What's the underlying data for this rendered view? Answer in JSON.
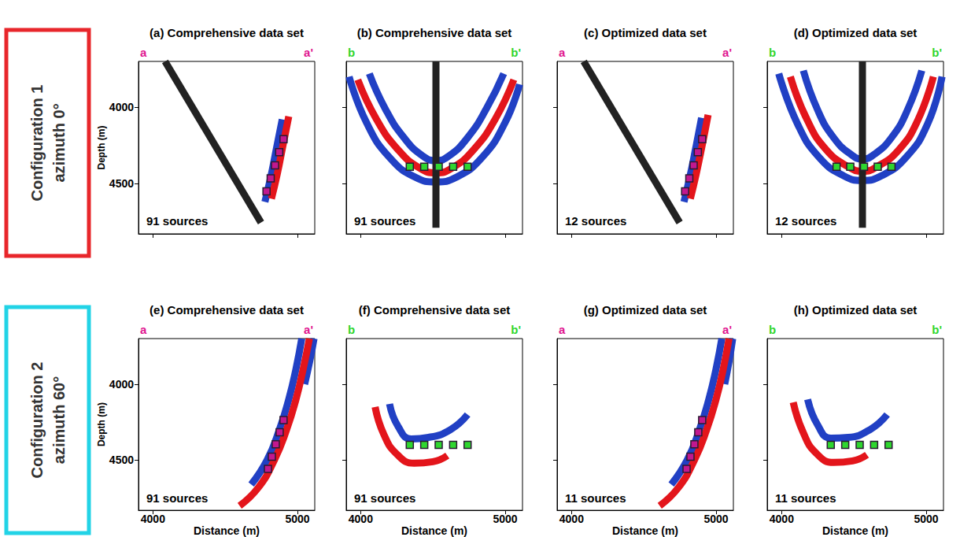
{
  "row_labels": [
    {
      "texts": [
        "Configuration 1",
        "azimuth 0°"
      ],
      "color": "#e8262b"
    },
    {
      "texts": [
        "Configuration 2",
        "azimuth 60°"
      ],
      "color": "#22d3e6"
    }
  ],
  "chart_data": [
    {
      "type": "line",
      "title": "(a) Comprehensive data set",
      "corner_labels": {
        "texts": [
          "a",
          "a'"
        ],
        "color": "#e0158f"
      },
      "annotation": "91 sources",
      "ylabel": "Depth (m)",
      "xlim": [
        3900,
        5120
      ],
      "ylim": [
        3700,
        4830
      ],
      "xticks": [
        4000,
        5000
      ],
      "yticks": [
        4000,
        4500
      ],
      "tick_labels": "y",
      "series": [
        {
          "type": "line",
          "color": "#2140c4",
          "x": [
            4895,
            4855,
            4815,
            4775
          ],
          "values": [
            4080,
            4270,
            4460,
            4620
          ]
        },
        {
          "type": "line",
          "color": "#e3151b",
          "x": [
            4940,
            4900,
            4860,
            4820
          ],
          "values": [
            4060,
            4250,
            4440,
            4600
          ]
        },
        {
          "type": "line",
          "color": "#222222",
          "x": [
            4084,
            4748
          ],
          "values": [
            3700,
            4756
          ]
        },
        {
          "type": "scatter",
          "marker": "square",
          "color": "#c2188f",
          "x": [
            4904,
            4874,
            4845,
            4815,
            4786
          ],
          "values": [
            4210,
            4295,
            4381,
            4466,
            4552
          ]
        }
      ]
    },
    {
      "type": "line",
      "title": "(b) Comprehensive data set",
      "corner_labels": {
        "texts": [
          "b",
          "b'"
        ],
        "color": "#2fd62f"
      },
      "annotation": "91 sources",
      "xlim": [
        3900,
        5120
      ],
      "ylim": [
        3700,
        4830
      ],
      "xticks": [
        4000,
        5000
      ],
      "yticks": [
        4000,
        4500
      ],
      "tick_labels": false,
      "series": [
        {
          "type": "line",
          "color": "#2140c4",
          "x": [
            3920,
            4040,
            4200,
            4380,
            4521,
            4660,
            4840,
            5000,
            5100
          ],
          "values": [
            3800,
            4100,
            4330,
            4460,
            4490,
            4460,
            4330,
            4100,
            3850
          ]
        },
        {
          "type": "line",
          "color": "#e3151b",
          "x": [
            3980,
            4110,
            4260,
            4410,
            4521,
            4630,
            4780,
            4930,
            5060
          ],
          "values": [
            3820,
            4080,
            4280,
            4400,
            4430,
            4400,
            4280,
            4080,
            3820
          ]
        },
        {
          "type": "line",
          "color": "#2140c4",
          "x": [
            4060,
            4170,
            4300,
            4430,
            4521,
            4610,
            4740,
            4870,
            4990
          ],
          "values": [
            3780,
            4010,
            4200,
            4320,
            4350,
            4320,
            4200,
            4010,
            3780
          ]
        },
        {
          "type": "line",
          "color": "#222222",
          "x": [
            4521,
            4521
          ],
          "values": [
            3700,
            4790
          ]
        },
        {
          "type": "scatter",
          "marker": "square",
          "color": "#2fd62f",
          "x": [
            4340,
            4440,
            4540,
            4640,
            4740
          ],
          "values": [
            4390,
            4390,
            4390,
            4390,
            4390
          ]
        }
      ]
    },
    {
      "type": "line",
      "title": "(c) Optimized data set",
      "corner_labels": {
        "texts": [
          "a",
          "a'"
        ],
        "color": "#e0158f"
      },
      "annotation": "12 sources",
      "xlim": [
        3900,
        5120
      ],
      "ylim": [
        3700,
        4830
      ],
      "xticks": [
        4000,
        5000
      ],
      "yticks": [
        4000,
        4500
      ],
      "tick_labels": false,
      "series": [
        {
          "type": "line",
          "color": "#2140c4",
          "x": [
            4900,
            4860,
            4818,
            4778
          ],
          "values": [
            4070,
            4265,
            4460,
            4620
          ]
        },
        {
          "type": "line",
          "color": "#e3151b",
          "x": [
            4945,
            4905,
            4862,
            4822
          ],
          "values": [
            4050,
            4245,
            4440,
            4600
          ]
        },
        {
          "type": "line",
          "color": "#222222",
          "x": [
            4084,
            4748
          ],
          "values": [
            3700,
            4756
          ]
        },
        {
          "type": "scatter",
          "marker": "square",
          "color": "#c2188f",
          "x": [
            4904,
            4874,
            4845,
            4815,
            4786
          ],
          "values": [
            4210,
            4295,
            4381,
            4466,
            4552
          ]
        }
      ]
    },
    {
      "type": "line",
      "title": "(d) Optimized data set",
      "corner_labels": {
        "texts": [
          "b",
          "b'"
        ],
        "color": "#2fd62f"
      },
      "annotation": "12 sources",
      "xlim": [
        3900,
        5120
      ],
      "ylim": [
        3700,
        4830
      ],
      "xticks": [
        4000,
        5000
      ],
      "yticks": [
        4000,
        4500
      ],
      "tick_labels": false,
      "series": [
        {
          "type": "line",
          "color": "#2140c4",
          "x": [
            3980,
            4110,
            4260,
            4430,
            4559,
            4690,
            4860,
            5010,
            5110
          ],
          "values": [
            3780,
            4110,
            4330,
            4450,
            4480,
            4450,
            4330,
            4110,
            3800
          ]
        },
        {
          "type": "line",
          "color": "#e3151b",
          "x": [
            4060,
            4180,
            4310,
            4460,
            4559,
            4660,
            4810,
            4940,
            5050
          ],
          "values": [
            3800,
            4090,
            4280,
            4390,
            4420,
            4390,
            4280,
            4090,
            3800
          ]
        },
        {
          "type": "line",
          "color": "#2140c4",
          "x": [
            4150,
            4250,
            4360,
            4480,
            4559,
            4640,
            4760,
            4870,
            4970
          ],
          "values": [
            3760,
            4020,
            4200,
            4310,
            4340,
            4310,
            4200,
            4020,
            3760
          ]
        },
        {
          "type": "line",
          "color": "#222222",
          "x": [
            4559,
            4559
          ],
          "values": [
            3700,
            4790
          ]
        },
        {
          "type": "scatter",
          "marker": "square",
          "color": "#2fd62f",
          "x": [
            4380,
            4475,
            4570,
            4665,
            4760
          ],
          "values": [
            4390,
            4390,
            4390,
            4390,
            4390
          ]
        }
      ]
    },
    {
      "type": "line",
      "title": "(e) Comprehensive data set",
      "corner_labels": {
        "texts": [
          "a",
          "a'"
        ],
        "color": "#e0158f"
      },
      "annotation": "91 sources",
      "xlabel": "Distance (m)",
      "ylabel": "Depth (m)",
      "xlim": [
        3900,
        5120
      ],
      "ylim": [
        3700,
        4830
      ],
      "xticks": [
        4000,
        5000
      ],
      "yticks": [
        4000,
        4500
      ],
      "tick_labels": true,
      "series": [
        {
          "type": "line",
          "color": "#2140c4",
          "x": [
            5030,
            4990,
            4940,
            4875,
            4790,
            4680
          ],
          "values": [
            3700,
            3900,
            4100,
            4300,
            4500,
            4660
          ]
        },
        {
          "type": "line",
          "color": "#2140c4",
          "x": [
            5115,
            5085,
            5050
          ],
          "values": [
            3700,
            3850,
            4000
          ]
        },
        {
          "type": "line",
          "color": "#e3151b",
          "x": [
            5083,
            5040,
            4990,
            4925,
            4840,
            4730,
            4600
          ],
          "values": [
            3700,
            3900,
            4100,
            4300,
            4500,
            4680,
            4800
          ]
        },
        {
          "type": "scatter",
          "marker": "square",
          "color": "#c2188f",
          "x": [
            4904,
            4877,
            4850,
            4823,
            4796
          ],
          "values": [
            4236,
            4316,
            4396,
            4477,
            4557
          ]
        }
      ]
    },
    {
      "type": "line",
      "title": "(f) Comprehensive data set",
      "corner_labels": {
        "texts": [
          "b",
          "b'"
        ],
        "color": "#2fd62f"
      },
      "annotation": "91 sources",
      "xlabel": "Distance (m)",
      "xlim": [
        3900,
        5120
      ],
      "ylim": [
        3700,
        4830
      ],
      "xticks": [
        4000,
        5000
      ],
      "yticks": [
        4000,
        4500
      ],
      "tick_labels": "x",
      "series": [
        {
          "type": "line",
          "color": "#2140c4",
          "x": [
            4200,
            4260,
            4350,
            4470,
            4620,
            4740
          ],
          "values": [
            4130,
            4280,
            4360,
            4350,
            4300,
            4200
          ]
        },
        {
          "type": "line",
          "color": "#e3151b",
          "x": [
            4100,
            4160,
            4250,
            4370,
            4500,
            4600
          ],
          "values": [
            4150,
            4330,
            4460,
            4520,
            4510,
            4470
          ]
        },
        {
          "type": "scatter",
          "marker": "square",
          "color": "#2fd62f",
          "x": [
            4340,
            4440,
            4540,
            4640,
            4740
          ],
          "values": [
            4400,
            4400,
            4400,
            4400,
            4400
          ]
        }
      ]
    },
    {
      "type": "line",
      "title": "(g) Optimized data set",
      "corner_labels": {
        "texts": [
          "a",
          "a'"
        ],
        "color": "#e0158f"
      },
      "annotation": "11 sources",
      "xlabel": "Distance (m)",
      "xlim": [
        3900,
        5120
      ],
      "ylim": [
        3700,
        4830
      ],
      "xticks": [
        4000,
        5000
      ],
      "yticks": [
        4000,
        4500
      ],
      "tick_labels": "x",
      "series": [
        {
          "type": "line",
          "color": "#2140c4",
          "x": [
            5040,
            5000,
            4950,
            4885,
            4800,
            4690
          ],
          "values": [
            3700,
            3900,
            4100,
            4300,
            4500,
            4660
          ]
        },
        {
          "type": "line",
          "color": "#2140c4",
          "x": [
            5115,
            5090,
            5060
          ],
          "values": [
            3700,
            3850,
            4000
          ]
        },
        {
          "type": "line",
          "color": "#e3151b",
          "x": [
            5090,
            5050,
            5000,
            4935,
            4850,
            4740,
            4610
          ],
          "values": [
            3700,
            3900,
            4100,
            4300,
            4500,
            4680,
            4800
          ]
        },
        {
          "type": "scatter",
          "marker": "square",
          "color": "#c2188f",
          "x": [
            4904,
            4877,
            4850,
            4823,
            4796
          ],
          "values": [
            4236,
            4316,
            4396,
            4477,
            4557
          ]
        }
      ]
    },
    {
      "type": "line",
      "title": "(h) Optimized data set",
      "corner_labels": {
        "texts": [
          "b",
          "b'"
        ],
        "color": "#2fd62f"
      },
      "annotation": "11 sources",
      "xlabel": "Distance (m)",
      "xlim": [
        3900,
        5120
      ],
      "ylim": [
        3700,
        4830
      ],
      "xticks": [
        4000,
        5000
      ],
      "yticks": [
        4000,
        4500
      ],
      "tick_labels": "x",
      "series": [
        {
          "type": "line",
          "color": "#2140c4",
          "x": [
            4180,
            4250,
            4340,
            4460,
            4610,
            4730
          ],
          "values": [
            4100,
            4270,
            4355,
            4350,
            4300,
            4200
          ]
        },
        {
          "type": "line",
          "color": "#e3151b",
          "x": [
            4080,
            4150,
            4240,
            4360,
            4490,
            4590
          ],
          "values": [
            4120,
            4320,
            4455,
            4515,
            4505,
            4465
          ]
        },
        {
          "type": "scatter",
          "marker": "square",
          "color": "#2fd62f",
          "x": [
            4340,
            4440,
            4540,
            4640,
            4740
          ],
          "values": [
            4400,
            4400,
            4400,
            4400,
            4400
          ]
        }
      ]
    }
  ]
}
